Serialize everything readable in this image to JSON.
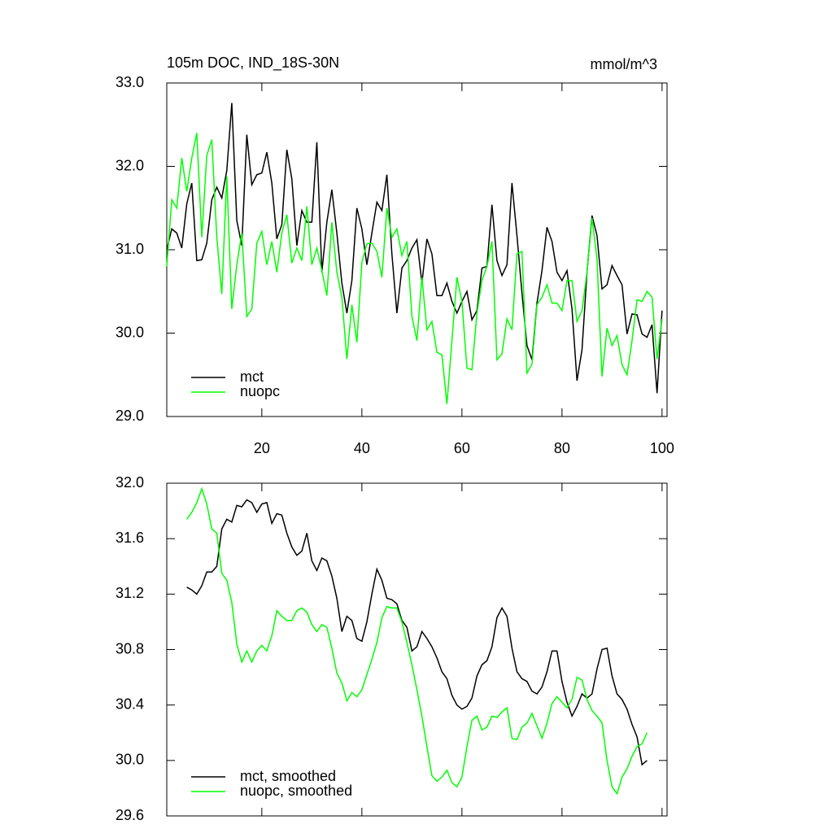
{
  "chart_data": [
    {
      "type": "line",
      "title": "105m DOC, IND_18S-30N",
      "units": "mmol/m^3",
      "x": [
        1,
        2,
        3,
        4,
        5,
        6,
        7,
        8,
        9,
        10,
        11,
        12,
        13,
        14,
        15,
        16,
        17,
        18,
        19,
        20,
        21,
        22,
        23,
        24,
        25,
        26,
        27,
        28,
        29,
        30,
        31,
        32,
        33,
        34,
        35,
        36,
        37,
        38,
        39,
        40,
        41,
        42,
        43,
        44,
        45,
        46,
        47,
        48,
        49,
        50,
        51,
        52,
        53,
        54,
        55,
        56,
        57,
        58,
        59,
        60,
        61,
        62,
        63,
        64,
        65,
        66,
        67,
        68,
        69,
        70,
        71,
        72,
        73,
        74,
        75,
        76,
        77,
        78,
        79,
        80,
        81,
        82,
        83,
        84,
        85,
        86,
        87,
        88,
        89,
        90,
        91,
        92,
        93,
        94,
        95,
        96,
        97,
        98,
        99,
        100
      ],
      "series": [
        {
          "name": "mct",
          "color": "#000000",
          "values": [
            31.0,
            31.25,
            31.2,
            31.02,
            31.55,
            31.8,
            30.87,
            30.88,
            31.08,
            31.6,
            31.75,
            31.62,
            31.95,
            32.76,
            31.35,
            31.05,
            32.38,
            31.78,
            31.9,
            31.92,
            32.17,
            31.8,
            31.13,
            31.3,
            32.2,
            31.85,
            31.05,
            31.47,
            31.33,
            31.33,
            32.29,
            30.73,
            31.33,
            31.72,
            31.2,
            30.6,
            30.24,
            30.63,
            31.5,
            31.25,
            30.82,
            31.2,
            31.57,
            31.47,
            31.9,
            30.95,
            30.24,
            30.78,
            30.87,
            31.02,
            31.12,
            30.6,
            31.13,
            30.95,
            30.45,
            30.45,
            30.6,
            30.38,
            30.24,
            30.38,
            30.5,
            30.16,
            30.27,
            30.78,
            30.8,
            31.54,
            30.87,
            30.69,
            30.82,
            31.8,
            31.17,
            30.48,
            29.85,
            29.68,
            30.36,
            30.75,
            31.27,
            31.1,
            30.73,
            30.63,
            30.75,
            30.29,
            29.43,
            29.8,
            30.73,
            31.41,
            31.17,
            30.53,
            30.58,
            30.81,
            30.69,
            30.58,
            29.99,
            30.23,
            30.22,
            29.99,
            29.95,
            30.1,
            29.28,
            30.27
          ]
        },
        {
          "name": "nuopc",
          "color": "#00ff00",
          "values": [
            30.8,
            31.6,
            31.5,
            32.1,
            31.7,
            32.1,
            32.4,
            31.15,
            32.13,
            32.32,
            31.15,
            30.47,
            31.88,
            30.29,
            30.82,
            31.2,
            30.2,
            30.29,
            31.08,
            31.22,
            30.82,
            31.1,
            30.73,
            31.2,
            31.42,
            30.84,
            31.02,
            30.87,
            31.52,
            30.82,
            31.02,
            30.75,
            30.45,
            31.33,
            30.73,
            30.43,
            29.69,
            30.34,
            29.89,
            30.85,
            31.07,
            31.08,
            30.98,
            30.67,
            31.5,
            31.15,
            31.25,
            30.93,
            31.1,
            30.2,
            29.91,
            30.67,
            30.04,
            30.14,
            29.77,
            29.74,
            29.15,
            29.91,
            30.67,
            30.38,
            29.58,
            29.56,
            30.24,
            30.63,
            30.8,
            31.1,
            29.68,
            29.75,
            30.17,
            30.04,
            30.95,
            30.98,
            29.52,
            29.63,
            30.34,
            30.43,
            30.58,
            30.36,
            30.36,
            30.27,
            30.63,
            30.63,
            30.14,
            30.27,
            30.73,
            31.38,
            30.89,
            29.48,
            30.06,
            29.85,
            29.97,
            29.62,
            29.5,
            29.91,
            30.4,
            30.38,
            30.5,
            30.43,
            29.69,
            30.17
          ]
        }
      ],
      "xlim": [
        1,
        101
      ],
      "xticks": [
        20,
        40,
        60,
        80,
        100
      ],
      "xtick_labels": true,
      "ylim": [
        29,
        33
      ],
      "yticks": [
        {
          "value": 29,
          "label": "29.0"
        },
        {
          "value": 30,
          "label": "30.0"
        },
        {
          "value": 31,
          "label": "31.0"
        },
        {
          "value": 32,
          "label": "32.0"
        },
        {
          "value": 33,
          "label": "33.0"
        }
      ],
      "legend": "lower left"
    },
    {
      "type": "line",
      "x": [
        5,
        6,
        7,
        8,
        9,
        10,
        11,
        12,
        13,
        14,
        15,
        16,
        17,
        18,
        19,
        20,
        21,
        22,
        23,
        24,
        25,
        26,
        27,
        28,
        29,
        30,
        31,
        32,
        33,
        34,
        35,
        36,
        37,
        38,
        39,
        40,
        41,
        42,
        43,
        44,
        45,
        46,
        47,
        48,
        49,
        50,
        51,
        52,
        53,
        54,
        55,
        56,
        57,
        58,
        59,
        60,
        61,
        62,
        63,
        64,
        65,
        66,
        67,
        68,
        69,
        70,
        71,
        72,
        73,
        74,
        75,
        76,
        77,
        78,
        79,
        80,
        81,
        82,
        83,
        84,
        85,
        86,
        87,
        88,
        89,
        90,
        91,
        92,
        93,
        94,
        95,
        96,
        97
      ],
      "series": [
        {
          "name": "mct, smoothed",
          "color": "#000000",
          "values": [
            31.25,
            31.23,
            31.2,
            31.26,
            31.36,
            31.36,
            31.4,
            31.67,
            31.74,
            31.72,
            31.84,
            31.83,
            31.88,
            31.86,
            31.79,
            31.85,
            31.86,
            31.71,
            31.78,
            31.77,
            31.64,
            31.54,
            31.48,
            31.51,
            31.64,
            31.44,
            31.37,
            31.46,
            31.44,
            31.33,
            31.17,
            30.93,
            31.04,
            31.01,
            30.88,
            30.86,
            31.0,
            31.2,
            31.38,
            31.3,
            31.17,
            31.16,
            31.13,
            31.01,
            30.96,
            30.79,
            30.82,
            30.93,
            30.88,
            30.82,
            30.74,
            30.64,
            30.59,
            30.47,
            30.4,
            30.37,
            30.39,
            30.45,
            30.61,
            30.69,
            30.72,
            30.82,
            31.03,
            31.1,
            31.04,
            30.81,
            30.64,
            30.59,
            30.57,
            30.5,
            30.48,
            30.53,
            30.64,
            30.79,
            30.79,
            30.57,
            30.42,
            30.32,
            30.39,
            30.48,
            30.45,
            30.48,
            30.66,
            30.8,
            30.81,
            30.61,
            30.48,
            30.44,
            30.37,
            30.26,
            30.17,
            29.97,
            30.0
          ]
        },
        {
          "name": "nuopc, smoothed",
          "color": "#00ff00",
          "values": [
            31.74,
            31.79,
            31.86,
            31.96,
            31.85,
            31.67,
            31.64,
            31.35,
            31.3,
            31.14,
            30.84,
            30.71,
            30.79,
            30.71,
            30.79,
            30.83,
            30.79,
            30.9,
            31.08,
            31.04,
            31.01,
            31.01,
            31.08,
            31.1,
            31.07,
            30.98,
            30.93,
            30.98,
            30.96,
            30.81,
            30.63,
            30.56,
            30.43,
            30.49,
            30.46,
            30.51,
            30.62,
            30.73,
            30.85,
            31.03,
            31.11,
            31.1,
            31.1,
            31.0,
            30.85,
            30.69,
            30.51,
            30.32,
            30.1,
            29.89,
            29.85,
            29.88,
            29.93,
            29.84,
            29.81,
            29.88,
            30.1,
            30.29,
            30.32,
            30.22,
            30.24,
            30.32,
            30.31,
            30.35,
            30.38,
            30.16,
            30.15,
            30.24,
            30.27,
            30.34,
            30.25,
            30.16,
            30.27,
            30.41,
            30.46,
            30.42,
            30.38,
            30.44,
            30.6,
            30.58,
            30.44,
            30.36,
            30.32,
            30.27,
            30.0,
            29.81,
            29.76,
            29.88,
            29.94,
            30.03,
            30.1,
            30.12,
            30.2
          ]
        }
      ],
      "xlim": [
        1,
        101
      ],
      "xticks": [
        20,
        40,
        60,
        80,
        100
      ],
      "xtick_labels": false,
      "ylim": [
        29.6,
        32
      ],
      "yticks": [
        29.6,
        {
          "value": 30,
          "label": "30.0"
        },
        30.4,
        30.8,
        31.2,
        31.6,
        {
          "value": 32,
          "label": "32.0"
        }
      ],
      "legend": "lower left"
    }
  ]
}
